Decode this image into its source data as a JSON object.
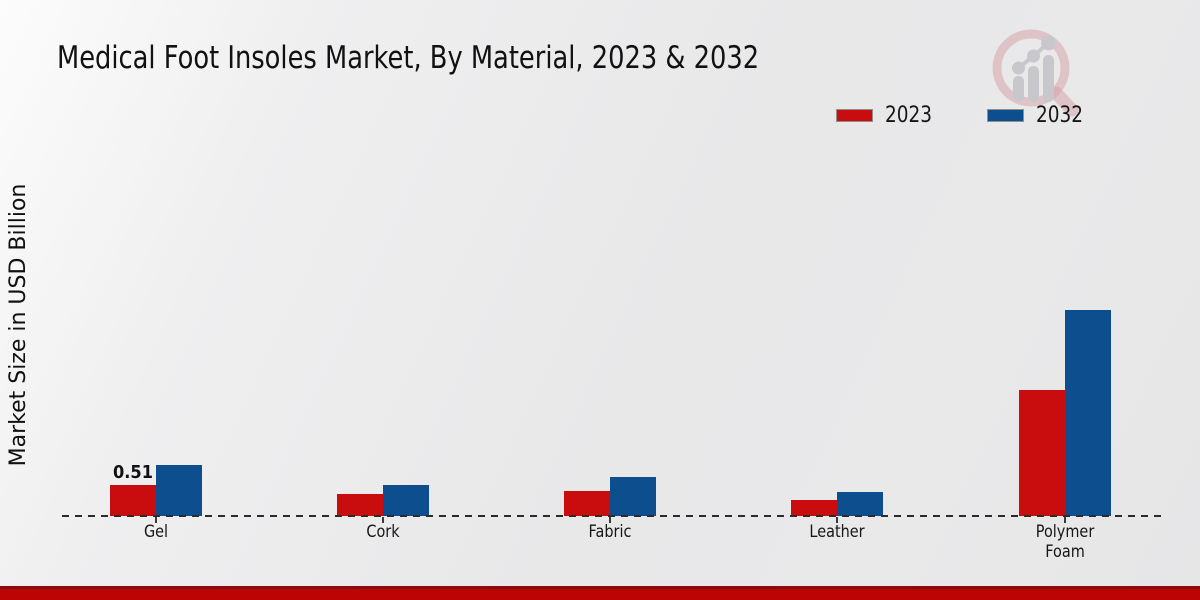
{
  "title": "Medical Foot Insoles Market, By Material, 2023 & 2032",
  "y_axis_label": "Market Size in USD Billion",
  "legend": [
    {
      "label": "2023",
      "color": "#c90d0e"
    },
    {
      "label": "2032",
      "color": "#0d4e8e"
    }
  ],
  "colors": {
    "bar_2023": "#c90d0e",
    "bar_2032": "#0d4e8e",
    "baseline": "#2b2b2b",
    "bottom_band": "#bd0404",
    "bottom_band_edge": "#8a0b0b",
    "background": "#e9e9ea"
  },
  "chart_data": {
    "type": "bar",
    "title": "Medical Foot Insoles Market, By Material, 2023 & 2032",
    "xlabel": "",
    "ylabel": "Market Size in USD Billion",
    "categories": [
      "Gel",
      "Cork",
      "Fabric",
      "Leather",
      "Polymer Foam"
    ],
    "series": [
      {
        "name": "2023",
        "color": "#c90d0e",
        "values": [
          0.51,
          0.36,
          0.41,
          0.26,
          2.07
        ]
      },
      {
        "name": "2032",
        "color": "#0d4e8e",
        "values": [
          0.84,
          0.51,
          0.64,
          0.39,
          3.37
        ]
      }
    ],
    "annotations": [
      {
        "series_index": 0,
        "category_index": 0,
        "text": "0.51"
      }
    ],
    "ylim": [
      0,
      3.6
    ],
    "grid": false,
    "axis_style": "dashed zero baseline only, no y ticks",
    "legend_position": "top-right"
  }
}
